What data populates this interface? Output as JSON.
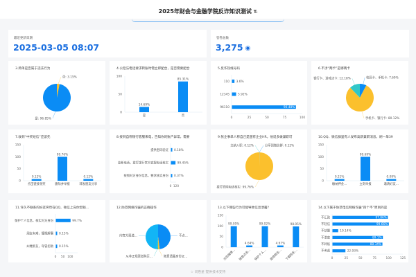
{
  "header": {
    "title": "2025年财会与金融学院反诈知识测试",
    "title_icon": "Tᵢ"
  },
  "stats": [
    {
      "label": "最近更新日期",
      "value": "2025-03-05 08:07"
    },
    {
      "label": "答卷总数",
      "value": "3,275",
      "icon": "eye-icon"
    }
  ],
  "colors": {
    "blue": "#0a8cf5",
    "yellow": "#fbc02d",
    "cyan": "#30c7c9",
    "accent": "#1b6fe0"
  },
  "footer": {
    "icon": "star-icon",
    "text": "问卷星 提供技术支持"
  },
  "chart_data": [
    {
      "type": "pie",
      "title": "3.简单是否属于违法行为",
      "labels": [
        "否",
        "是"
      ],
      "values": [
        3.15,
        96.85
      ],
      "colors": [
        "#fbc02d",
        "#0a8cf5"
      ]
    },
    {
      "type": "bar",
      "title": "4.公检法电话要求转账时需立即配合，是否需要配合",
      "categories": [
        "是",
        "否"
      ],
      "values": [
        14.69,
        85.31
      ],
      "ylim": [
        0,
        100
      ],
      "yticks": [
        0,
        50,
        100
      ]
    },
    {
      "type": "hbar",
      "title": "5.反诈热线号码",
      "categories": [
        "110",
        "12345",
        "96110"
      ],
      "values": [
        3.6,
        5.92,
        90.48
      ],
      "xlim": [
        0,
        100
      ],
      "xticks": [
        0,
        25,
        50,
        75,
        100
      ]
    },
    {
      "type": "pie",
      "title": "6.不涉“两卡”是哪两卡",
      "labels": [
        "校园卡、手机卡",
        "手机卡、银行卡",
        "银行卡、游戏点卡"
      ],
      "values": [
        7.69,
        80.12,
        12.18
      ],
      "colors": [
        "#0a8cf5",
        "#fbc02d",
        "#30c7c9"
      ]
    },
    {
      "type": "bar",
      "title": "7.收到“中奖短信”应该先",
      "categories": [
        "点击链接领奖",
        "删除并举报",
        "转发朋友分享"
      ],
      "values": [
        0.12,
        99.76,
        0.12
      ],
      "ylim": [
        0,
        150
      ],
      "yticks": [
        0,
        50,
        100,
        150
      ]
    },
    {
      "type": "hbar",
      "title": "8.接到自称银行客服来电，告知你的账户异常，需要",
      "categories": [
        "提供密码验证",
        "挂断电话，拨打银行官方客服电话核实",
        "按照对方身份信息，要求核实身份"
      ],
      "values": [
        0.18,
        99.45,
        0.37
      ],
      "xlim": [
        0,
        120
      ],
      "xticks": [
        0,
        120
      ]
    },
    {
      "type": "pie",
      "title": "9.张企事单人称自己是国有企业HR，他说多做兼职可",
      "labels": [
        "分享到微信群",
        "交纳入职",
        "拨打官网电话核实"
      ],
      "values": [
        0.12,
        0.12,
        99.76
      ],
      "colors": [
        "#0a8cf5",
        "#30c7c9",
        "#fbc02d"
      ]
    },
    {
      "type": "bar",
      "title": "10.QQ、微信群里有人发布高薪兼职消息，刷一单39",
      "categories": [
        "缴纳押金…",
        "立刻举报",
        "邀请好友…"
      ],
      "values": [
        0.21,
        99.69,
        0.09
      ],
      "ylim": [
        0,
        150
      ],
      "yticks": [
        0,
        50,
        100,
        150
      ]
    },
    {
      "type": "hbar",
      "title": "11.许久不联系的好友突然在QQ、微信上向你借钱…",
      "categories": [
        "保护个人信息，核实对方身份",
        "朋友有难，慷慨解囊",
        "纠缠索友，夺冒招助"
      ],
      "values": [
        99.7,
        0.15,
        0.15
      ],
      "xlim": [
        0,
        150
      ],
      "xticks": [
        0,
        50,
        100
      ]
    },
    {
      "type": "pie",
      "title": "12.防范网络诈骗的正确操作",
      "labels": [
        "不点…",
        "随意透露身份证…",
        "从非正规渠道购买…",
        "向官方渠道…"
      ],
      "values": [
        48,
        2,
        2,
        48
      ],
      "colors": [
        "#0a8cf5",
        "#fbc02d",
        "#30c7c9",
        "#12b5f5"
      ],
      "hide_values": true
    },
    {
      "type": "bar",
      "title": "13.以下哪些行为可能导致信息泄露?",
      "categories": [
        "浏览赌博…",
        "随意点击…",
        "保护个人…",
        "拒绝陌生…",
        "下载陌生…"
      ],
      "values": [
        99.05,
        4.64,
        99.02,
        4.67,
        98.05
      ],
      "ylim": [
        0,
        150
      ],
      "yticks": [
        0,
        50,
        100,
        150
      ],
      "rotate_labels": true
    },
    {
      "type": "hbar",
      "title": "14.以下属于防范电信网络诈骗“四个不”原则的是",
      "categories": [
        "不汇款",
        "不轻信",
        "不扶腰",
        "不泄密",
        "不转账",
        "不考虑"
      ],
      "values": [
        97.86,
        99.66,
        10.14,
        89.1,
        88.34,
        22.93
      ],
      "xlim": [
        0,
        125
      ],
      "xticks": [
        0,
        25,
        50,
        75,
        100,
        125
      ]
    }
  ]
}
